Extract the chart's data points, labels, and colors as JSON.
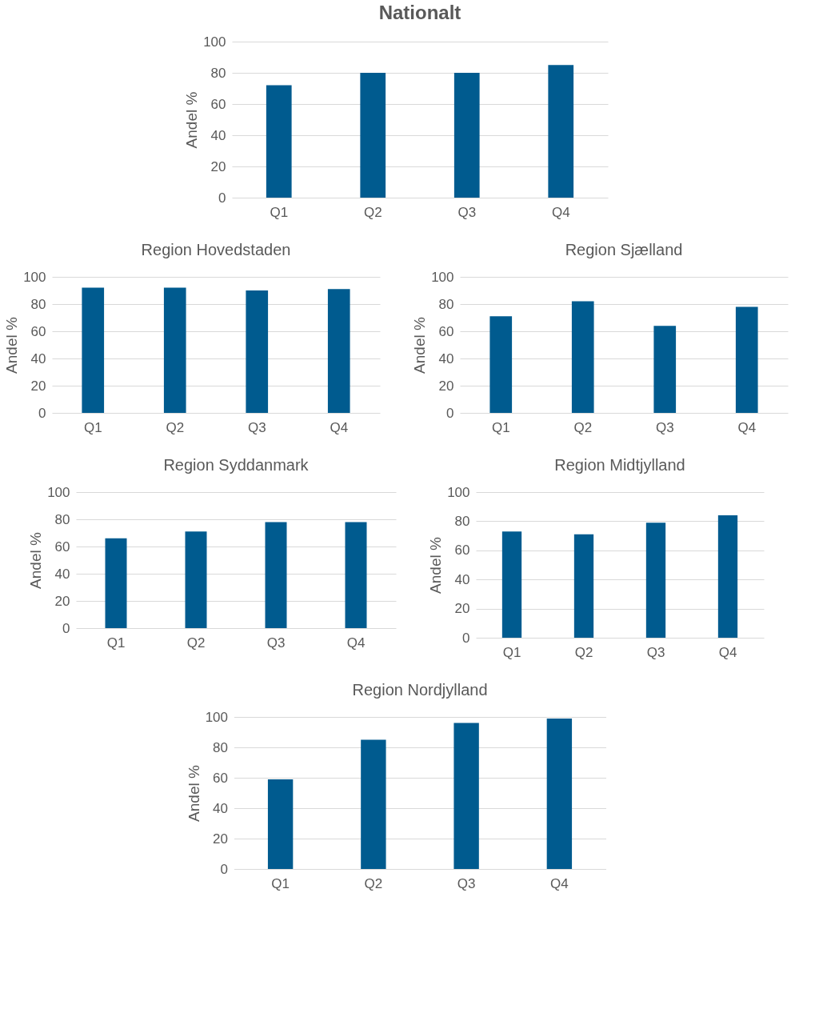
{
  "chart_data": [
    {
      "type": "bar",
      "title": "Nationalt",
      "ylabel": "Andel %",
      "categories": [
        "Q1",
        "Q2",
        "Q3",
        "Q4"
      ],
      "values": [
        72,
        80,
        80,
        85
      ],
      "color": "#005b8f",
      "ylim": [
        0,
        100
      ],
      "yticks": [
        0,
        20,
        40,
        60,
        80,
        100
      ],
      "grid": "y"
    },
    {
      "type": "bar",
      "title": "Region Hovedstaden",
      "ylabel": "Andel %",
      "categories": [
        "Q1",
        "Q2",
        "Q3",
        "Q4"
      ],
      "values": [
        92,
        92,
        90,
        91
      ],
      "color": "#005b8f",
      "ylim": [
        0,
        100
      ],
      "yticks": [
        0,
        20,
        40,
        60,
        80,
        100
      ],
      "grid": "y"
    },
    {
      "type": "bar",
      "title": "Region Sjælland",
      "ylabel": "Andel %",
      "categories": [
        "Q1",
        "Q2",
        "Q3",
        "Q4"
      ],
      "values": [
        71,
        82,
        64,
        78
      ],
      "color": "#005b8f",
      "ylim": [
        0,
        100
      ],
      "yticks": [
        0,
        20,
        40,
        60,
        80,
        100
      ],
      "grid": "y"
    },
    {
      "type": "bar",
      "title": "Region Syddanmark",
      "ylabel": "Andel %",
      "categories": [
        "Q1",
        "Q2",
        "Q3",
        "Q4"
      ],
      "values": [
        66,
        71,
        78,
        78
      ],
      "color": "#005b8f",
      "ylim": [
        0,
        100
      ],
      "yticks": [
        0,
        20,
        40,
        60,
        80,
        100
      ],
      "grid": "y"
    },
    {
      "type": "bar",
      "title": "Region Midtjylland",
      "ylabel": "Andel %",
      "categories": [
        "Q1",
        "Q2",
        "Q3",
        "Q4"
      ],
      "values": [
        73,
        71,
        79,
        84
      ],
      "color": "#005b8f",
      "ylim": [
        0,
        100
      ],
      "yticks": [
        0,
        20,
        40,
        60,
        80,
        100
      ],
      "grid": "y"
    },
    {
      "type": "bar",
      "title": "Region Nordjylland",
      "ylabel": "Andel %",
      "categories": [
        "Q1",
        "Q2",
        "Q3",
        "Q4"
      ],
      "values": [
        59,
        85,
        96,
        99
      ],
      "color": "#005b8f",
      "ylim": [
        0,
        100
      ],
      "yticks": [
        0,
        20,
        40,
        60,
        80,
        100
      ],
      "grid": "y"
    }
  ]
}
